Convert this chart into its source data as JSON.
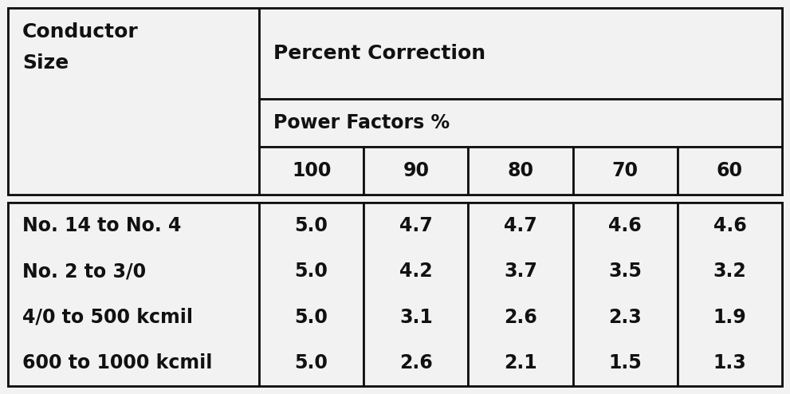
{
  "header_row1_col1": "Conductor\nSize",
  "header_row1_col2": "Percent Correction",
  "header_row2_col2": "Power Factors %",
  "header_row3": [
    "100",
    "90",
    "80",
    "70",
    "60"
  ],
  "conductor_sizes": [
    "No. 14 to No. 4",
    "No. 2 to 3/0",
    "4/0 to 500 kcmil",
    "600 to 1000 kcmil"
  ],
  "data": [
    [
      "5.0",
      "4.7",
      "4.7",
      "4.6",
      "4.6"
    ],
    [
      "5.0",
      "4.2",
      "3.7",
      "3.5",
      "3.2"
    ],
    [
      "5.0",
      "3.1",
      "2.6",
      "2.3",
      "1.9"
    ],
    [
      "5.0",
      "2.6",
      "2.1",
      "1.5",
      "1.3"
    ]
  ],
  "bg_color": "#f2f2f2",
  "border_color": "#111111",
  "text_color": "#111111",
  "font_size_header_main": 18,
  "font_size_header_sub": 17,
  "font_size_pf": 17,
  "font_size_data": 17,
  "lw": 2.0
}
